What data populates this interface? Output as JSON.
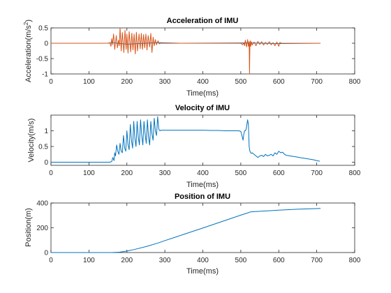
{
  "chart_data": [
    {
      "type": "line",
      "title": "Acceleration of IMU",
      "xlabel": "Time(ms)",
      "ylabel": "Acceleration(m/s",
      "ylabel_sup": "2",
      "ylabel_end": ")",
      "xlim": [
        0,
        800
      ],
      "ylim": [
        -1,
        0.5
      ],
      "xticks": [
        "0",
        "100",
        "200",
        "300",
        "400",
        "500",
        "600",
        "700",
        "800"
      ],
      "yticks": [
        "0.5",
        "0",
        "-0.5",
        "-1"
      ],
      "grid": false,
      "series": [
        {
          "color": "#0072bd",
          "x": [
            0,
            150,
            160,
            200,
            280,
            340,
            520,
            600,
            710
          ],
          "y": [
            0,
            0,
            0.02,
            -0.03,
            0.02,
            0,
            0.01,
            -0.01,
            0
          ]
        },
        {
          "color": "#d95319",
          "x": [
            0,
            150,
            155,
            158,
            160,
            162,
            165,
            168,
            172,
            175,
            178,
            180,
            182,
            185,
            188,
            192,
            195,
            198,
            200,
            203,
            206,
            210,
            213,
            216,
            219,
            222,
            225,
            228,
            232,
            235,
            238,
            241,
            244,
            247,
            250,
            253,
            256,
            260,
            263,
            266,
            269,
            272,
            275,
            278,
            282,
            285,
            288,
            300,
            340,
            345,
            348,
            350,
            352,
            355,
            360,
            365,
            370,
            375,
            380,
            385,
            390,
            395,
            398,
            400,
            403,
            406,
            410,
            420,
            430,
            440,
            450,
            460,
            470,
            480,
            490,
            500,
            505,
            508,
            510,
            512,
            515,
            518,
            520,
            522,
            523,
            524,
            525,
            526,
            528,
            530,
            535,
            540,
            545,
            550,
            555,
            560,
            565,
            570,
            575,
            580,
            585,
            590,
            595,
            600,
            603,
            606,
            608,
            610,
            615,
            620,
            640,
            660,
            680,
            700,
            710
          ],
          "y": [
            0,
            0,
            0.02,
            -0.1,
            0.15,
            -0.05,
            0.3,
            -0.2,
            0.25,
            -0.15,
            0.1,
            -0.08,
            0.5,
            -0.25,
            0.35,
            -0.3,
            0.42,
            -0.2,
            0.3,
            -0.32,
            0.38,
            -0.28,
            0.33,
            -0.22,
            0.3,
            -0.35,
            0.36,
            -0.25,
            0.3,
            -0.18,
            0.32,
            -0.2,
            0.28,
            -0.15,
            0.3,
            -0.22,
            0.25,
            -0.12,
            0.32,
            -0.3,
            0.2,
            -0.08,
            0.12,
            -0.05,
            0.08,
            -0.02,
            0,
            0,
            0,
            0,
            0,
            0,
            0,
            0,
            0,
            0,
            0,
            0,
            0,
            0,
            0,
            0,
            0,
            0,
            0,
            0,
            0,
            0,
            0,
            0,
            0,
            0,
            0,
            0,
            0,
            0,
            -0.05,
            0.02,
            -0.08,
            0.1,
            -0.12,
            0.12,
            -0.1,
            0.05,
            -1,
            -0.05,
            0.08,
            -0.1,
            0.05,
            -0.06,
            0.04,
            -0.08,
            0.06,
            -0.04,
            0.05,
            -0.06,
            0.03,
            -0.04,
            0.05,
            -0.05,
            0.02,
            -0.08,
            0.04,
            -0.1,
            0.03,
            0,
            0,
            0,
            0,
            0,
            0,
            0,
            0,
            0,
            0
          ]
        }
      ]
    },
    {
      "type": "line",
      "title": "Velocity of IMU",
      "xlabel": "Time(ms)",
      "ylabel": "Velocity(m/s)",
      "xlim": [
        0,
        800
      ],
      "ylim": [
        -0.1,
        1.5
      ],
      "xticks": [
        "0",
        "100",
        "200",
        "300",
        "400",
        "500",
        "600",
        "700",
        "800"
      ],
      "yticks": [
        "0",
        "0.5",
        "1"
      ],
      "grid": false,
      "series": [
        {
          "color": "#0072bd",
          "x": [
            0,
            155,
            160,
            163,
            166,
            168,
            170,
            173,
            176,
            179,
            182,
            185,
            188,
            191,
            194,
            197,
            200,
            203,
            206,
            209,
            212,
            215,
            218,
            221,
            224,
            227,
            230,
            233,
            236,
            239,
            242,
            245,
            248,
            251,
            254,
            257,
            260,
            263,
            266,
            269,
            272,
            275,
            278,
            281,
            284,
            287,
            290,
            300,
            320,
            340,
            360,
            380,
            400,
            420,
            440,
            460,
            480,
            490,
            495,
            500,
            503,
            506,
            508,
            510,
            512,
            514,
            516,
            518,
            520,
            522,
            524,
            526,
            528,
            530,
            535,
            540,
            545,
            550,
            555,
            560,
            565,
            570,
            575,
            580,
            585,
            590,
            595,
            600,
            605,
            610,
            615,
            620,
            630,
            640,
            650,
            660,
            670,
            680,
            690,
            700,
            708
          ],
          "y": [
            0,
            0,
            0.02,
            0.15,
            0.05,
            0.3,
            0.2,
            0.55,
            0.35,
            0.25,
            0.6,
            0.35,
            0.3,
            0.85,
            0.45,
            0.35,
            1.0,
            0.55,
            0.4,
            1.2,
            0.7,
            0.45,
            1.3,
            0.75,
            0.5,
            1.3,
            0.8,
            0.55,
            1.35,
            0.85,
            0.55,
            1.3,
            0.9,
            0.6,
            1.35,
            0.8,
            0.55,
            1.3,
            0.9,
            0.7,
            1.4,
            1.0,
            0.85,
            1.45,
            1.05,
            1.0,
            1.02,
            1.02,
            1.02,
            1.02,
            1.02,
            1.02,
            1.02,
            1.01,
            1.01,
            1.0,
            1.0,
            1.0,
            1.0,
            0.98,
            0.85,
            0.7,
            0.9,
            1.0,
            1.0,
            1.05,
            1.2,
            1.35,
            1.2,
            0.5,
            0.35,
            0.3,
            0.28,
            0.3,
            0.25,
            0.2,
            0.15,
            0.2,
            0.22,
            0.18,
            0.25,
            0.2,
            0.22,
            0.25,
            0.2,
            0.3,
            0.25,
            0.35,
            0.3,
            0.32,
            0.25,
            0.22,
            0.2,
            0.18,
            0.16,
            0.14,
            0.12,
            0.1,
            0.08,
            0.05,
            0.03
          ]
        }
      ]
    },
    {
      "type": "line",
      "title": "Position of IMU",
      "xlabel": "Time(ms)",
      "ylabel": "Position(m)",
      "xlim": [
        0,
        800
      ],
      "ylim": [
        0,
        400
      ],
      "xticks": [
        "0",
        "100",
        "200",
        "300",
        "400",
        "500",
        "600",
        "700",
        "800"
      ],
      "yticks": [
        "0",
        "200",
        "400"
      ],
      "grid": false,
      "series": [
        {
          "color": "#0072bd",
          "x": [
            0,
            160,
            180,
            200,
            220,
            250,
            280,
            300,
            350,
            400,
            450,
            500,
            520,
            525,
            550,
            600,
            650,
            700,
            710
          ],
          "y": [
            0,
            0,
            3,
            12,
            25,
            48,
            75,
            96,
            147,
            198,
            250,
            302,
            322,
            328,
            333,
            342,
            350,
            355,
            356
          ]
        }
      ]
    }
  ]
}
